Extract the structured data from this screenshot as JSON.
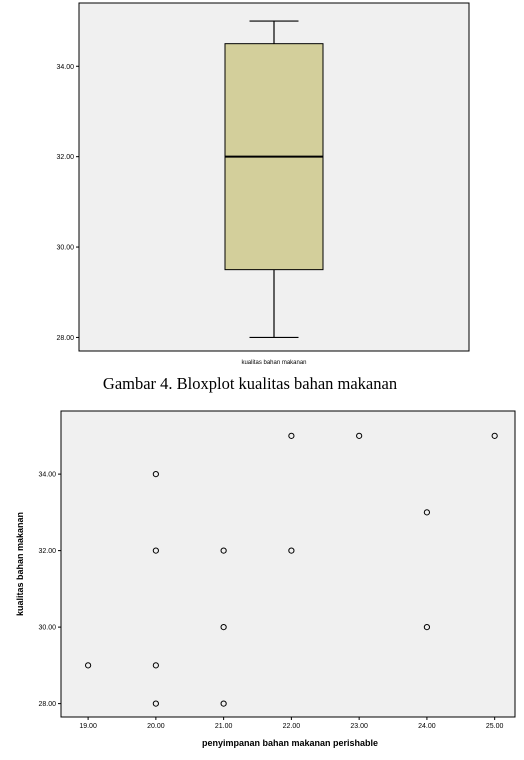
{
  "caption": "Gambar 4. Bloxplot kualitas bahan makanan",
  "chart_data": [
    {
      "type": "box",
      "categories": [
        "kualitas bahan makanan"
      ],
      "box": {
        "min": 28.0,
        "q1": 29.5,
        "median": 32.0,
        "q3": 34.5,
        "max": 35.0
      },
      "yticks": [
        "28.00",
        "30.00",
        "32.00",
        "34.00"
      ],
      "ylim": [
        27.7,
        35.4
      ],
      "grid": false,
      "colors": {
        "box_fill": "#d3cf9b",
        "plot_bg": "#f0f0f0"
      }
    },
    {
      "type": "scatter",
      "xlabel": "penyimpanan bahan makanan perishable",
      "ylabel": "kualitas bahan makanan",
      "xticks": [
        "19.00",
        "20.00",
        "21.00",
        "22.00",
        "23.00",
        "24.00",
        "25.00"
      ],
      "yticks": [
        "28.00",
        "30.00",
        "32.00",
        "34.00"
      ],
      "xlim": [
        18.6,
        25.3
      ],
      "ylim": [
        27.65,
        35.65
      ],
      "grid": false,
      "points": [
        {
          "x": 19,
          "y": 29
        },
        {
          "x": 20,
          "y": 28
        },
        {
          "x": 20,
          "y": 29
        },
        {
          "x": 20,
          "y": 32
        },
        {
          "x": 20,
          "y": 34
        },
        {
          "x": 21,
          "y": 28
        },
        {
          "x": 21,
          "y": 30
        },
        {
          "x": 21,
          "y": 32
        },
        {
          "x": 22,
          "y": 32
        },
        {
          "x": 22,
          "y": 35
        },
        {
          "x": 23,
          "y": 35
        },
        {
          "x": 24,
          "y": 30
        },
        {
          "x": 24,
          "y": 33
        },
        {
          "x": 25,
          "y": 35
        }
      ],
      "colors": {
        "plot_bg": "#f0f0f0",
        "marker": "#000000"
      }
    }
  ]
}
